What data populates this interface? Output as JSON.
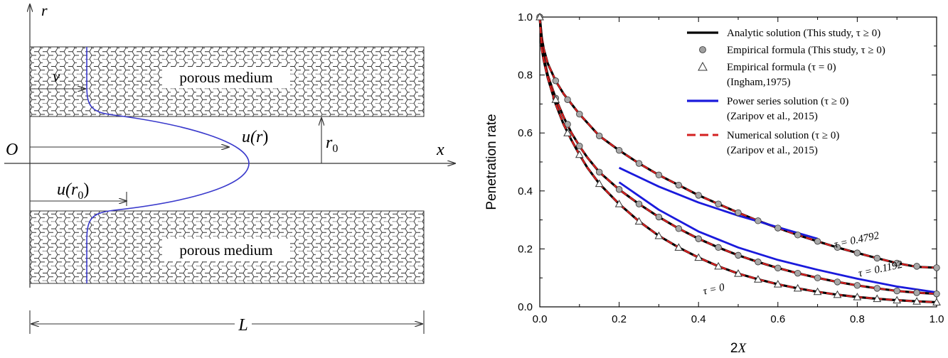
{
  "schematic": {
    "label_r": "r",
    "label_x": "x",
    "label_O": "O",
    "label_v": "v",
    "label_u_r_main": "u(",
    "label_u_r_var": "r",
    "label_u_r_close": ")",
    "label_u_r0_main": "u(",
    "label_u_r0_var": "r",
    "label_u_r0_sub": "0",
    "label_u_r0_close": ")",
    "label_r0_var": "r",
    "label_r0_sub": "0",
    "label_L": "L",
    "porous_top": "porous medium",
    "porous_bottom": "porous medium"
  },
  "chart_data": {
    "type": "line",
    "xlabel_main": "2",
    "xlabel_var": "X",
    "ylabel": "Penetration rate",
    "xlim": [
      0.0,
      1.0
    ],
    "ylim": [
      0.0,
      1.0
    ],
    "xticks": [
      "0.0",
      "0.2",
      "0.4",
      "0.6",
      "0.8",
      "1.0"
    ],
    "yticks": [
      "0.0",
      "0.2",
      "0.4",
      "0.6",
      "0.8",
      "1.0"
    ],
    "legend": {
      "placement": "top-right",
      "entries": [
        {
          "label": "Analytic solution (This study, τ ≥ 0)",
          "marker": "line",
          "color": "#000000"
        },
        {
          "label": "Empirical formula (This study, τ ≥ 0)",
          "marker": "circle",
          "color": "#a0a0a0"
        },
        {
          "label": "Empirical formula (τ = 0)",
          "label2": "(Ingham,1975)",
          "marker": "triangle",
          "color": "#ffffff"
        },
        {
          "label": "Power series solution (τ ≥ 0)",
          "label2": "(Zaripov et al., 2015)",
          "marker": "line",
          "color": "#1a1adc"
        },
        {
          "label": "Numerical solution (τ ≥ 0)",
          "label2": "(Zaripov et al., 2015)",
          "marker": "dash",
          "color": "#d42020"
        }
      ]
    },
    "series": [
      {
        "tau": "τ = 0.4792",
        "label_x": 0.8,
        "label_y": 0.22,
        "x": [
          0.0,
          0.005,
          0.01,
          0.02,
          0.04,
          0.06,
          0.08,
          0.1,
          0.12,
          0.15,
          0.2,
          0.25,
          0.3,
          0.35,
          0.4,
          0.45,
          0.5,
          0.55,
          0.6,
          0.65,
          0.7,
          0.75,
          0.8,
          0.85,
          0.9,
          0.95,
          1.0
        ],
        "y": [
          1.0,
          0.93,
          0.89,
          0.84,
          0.78,
          0.735,
          0.7,
          0.665,
          0.635,
          0.59,
          0.54,
          0.495,
          0.455,
          0.42,
          0.385,
          0.355,
          0.325,
          0.297,
          0.272,
          0.248,
          0.226,
          0.205,
          0.186,
          0.168,
          0.151,
          0.138,
          0.135
        ],
        "markers_x": [
          0.0,
          0.04,
          0.07,
          0.1,
          0.15,
          0.2,
          0.25,
          0.3,
          0.35,
          0.4,
          0.45,
          0.5,
          0.55,
          0.6,
          0.65,
          0.7,
          0.75,
          0.8,
          0.85,
          0.9,
          0.95,
          1.0
        ],
        "markers_y": [
          1.0,
          0.78,
          0.715,
          0.665,
          0.59,
          0.54,
          0.495,
          0.455,
          0.42,
          0.385,
          0.355,
          0.325,
          0.297,
          0.272,
          0.248,
          0.226,
          0.205,
          0.186,
          0.168,
          0.151,
          0.14,
          0.135
        ],
        "power_x": [
          0.2,
          0.3,
          0.4,
          0.5,
          0.6,
          0.7
        ],
        "power_y": [
          0.48,
          0.415,
          0.36,
          0.315,
          0.275,
          0.235
        ]
      },
      {
        "tau": "τ = 0.1192",
        "label_x": 0.86,
        "label_y": 0.12,
        "x": [
          0.0,
          0.005,
          0.01,
          0.02,
          0.04,
          0.06,
          0.08,
          0.1,
          0.12,
          0.15,
          0.2,
          0.25,
          0.3,
          0.35,
          0.4,
          0.45,
          0.5,
          0.55,
          0.6,
          0.65,
          0.7,
          0.75,
          0.8,
          0.85,
          0.9,
          0.95,
          1.0
        ],
        "y": [
          1.0,
          0.9,
          0.86,
          0.8,
          0.72,
          0.655,
          0.6,
          0.555,
          0.515,
          0.465,
          0.405,
          0.355,
          0.31,
          0.27,
          0.235,
          0.205,
          0.178,
          0.155,
          0.134,
          0.116,
          0.1,
          0.086,
          0.074,
          0.064,
          0.055,
          0.049,
          0.045
        ],
        "markers_x": [
          0.0,
          0.04,
          0.07,
          0.1,
          0.15,
          0.2,
          0.25,
          0.3,
          0.35,
          0.4,
          0.45,
          0.5,
          0.55,
          0.6,
          0.65,
          0.7,
          0.75,
          0.8,
          0.85,
          0.9,
          0.95,
          1.0
        ],
        "markers_y": [
          1.0,
          0.72,
          0.63,
          0.555,
          0.465,
          0.405,
          0.355,
          0.31,
          0.27,
          0.235,
          0.205,
          0.178,
          0.155,
          0.134,
          0.116,
          0.1,
          0.086,
          0.074,
          0.064,
          0.055,
          0.049,
          0.045
        ],
        "power_x": [
          0.2,
          0.3,
          0.4,
          0.5,
          0.6,
          0.7,
          0.8,
          0.9,
          1.0
        ],
        "power_y": [
          0.43,
          0.335,
          0.26,
          0.205,
          0.162,
          0.128,
          0.097,
          0.07,
          0.05
        ]
      },
      {
        "tau": "τ = 0",
        "label_x": 0.44,
        "label_y": 0.05,
        "x": [
          0.0,
          0.005,
          0.01,
          0.02,
          0.04,
          0.06,
          0.08,
          0.1,
          0.12,
          0.15,
          0.2,
          0.25,
          0.3,
          0.35,
          0.4,
          0.45,
          0.5,
          0.55,
          0.6,
          0.65,
          0.7,
          0.75,
          0.8,
          0.85,
          0.9,
          0.95,
          1.0
        ],
        "y": [
          1.0,
          0.89,
          0.85,
          0.79,
          0.7,
          0.63,
          0.575,
          0.525,
          0.48,
          0.425,
          0.355,
          0.295,
          0.245,
          0.205,
          0.17,
          0.14,
          0.115,
          0.095,
          0.078,
          0.064,
          0.052,
          0.042,
          0.034,
          0.028,
          0.023,
          0.019,
          0.016
        ],
        "markers_x": [
          0.0,
          0.04,
          0.07,
          0.1,
          0.15,
          0.2,
          0.25,
          0.3,
          0.35,
          0.4,
          0.45,
          0.5,
          0.55,
          0.6,
          0.65,
          0.7,
          0.75,
          0.8,
          0.85,
          0.9,
          0.95,
          1.0
        ],
        "markers_y": [
          1.0,
          0.715,
          0.6,
          0.525,
          0.425,
          0.355,
          0.295,
          0.245,
          0.205,
          0.17,
          0.14,
          0.115,
          0.095,
          0.078,
          0.064,
          0.052,
          0.042,
          0.034,
          0.028,
          0.023,
          0.019,
          0.016
        ]
      }
    ]
  }
}
